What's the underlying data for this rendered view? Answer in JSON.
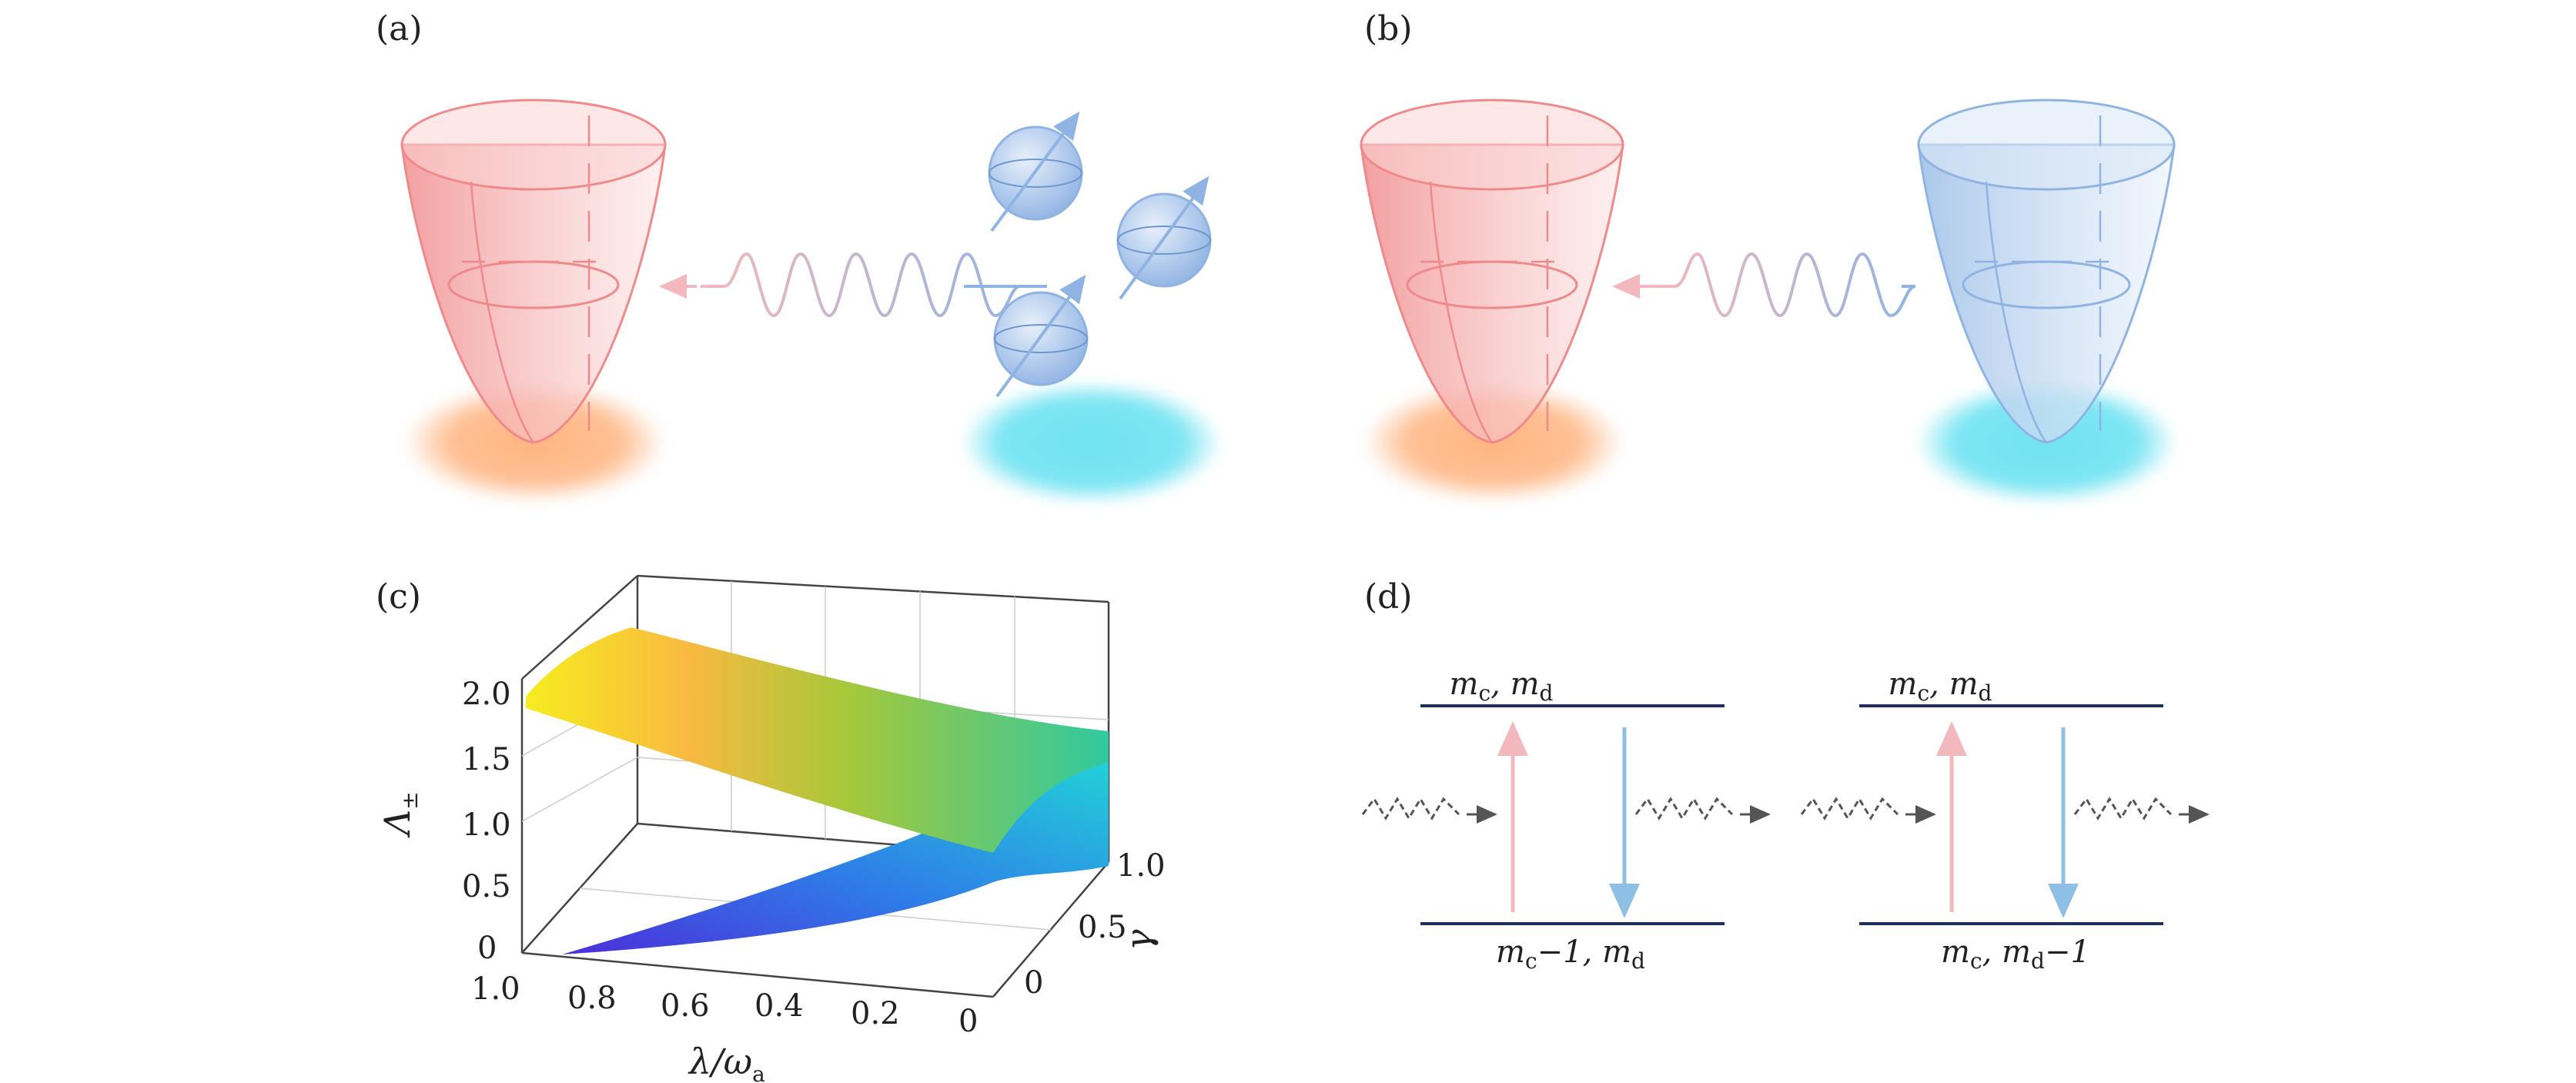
{
  "panels": {
    "a": {
      "label": "(a)"
    },
    "b": {
      "label": "(b)"
    },
    "c": {
      "label": "(c)"
    },
    "d": {
      "label": "(d)"
    }
  },
  "colors": {
    "cavity_red": "#f08a8a",
    "cavity_fill": "#f7b5b5",
    "spin_blue": "#8fb3e3",
    "glow_orange": "#ffb07a",
    "glow_cyan": "#6fe3f2",
    "level_line": "#1f2e5a",
    "arrow_pink": "#f2b8bd",
    "arrow_blue": "#8ec0e6"
  },
  "panel_c": {
    "zlabel_main": "Λ",
    "zlabel_sub": "±",
    "xlabel_num": "λ/ω",
    "xlabel_sub": "a",
    "ylabel": "γ",
    "z_ticks": [
      "2.0",
      "1.5",
      "1.0",
      "0.5",
      "0"
    ],
    "x_ticks": [
      "1.0",
      "0.8",
      "0.6",
      "0.4",
      "0.2",
      "0"
    ],
    "y_ticks": [
      "1.0",
      "0.5",
      "0"
    ]
  },
  "panel_d": {
    "left": {
      "top_level": [
        "m",
        "c",
        ", m",
        "d",
        ""
      ],
      "bottom_level": [
        "m",
        "c",
        "−1, m",
        "d",
        ""
      ]
    },
    "right": {
      "top_level": [
        "m",
        "c",
        ", m",
        "d",
        ""
      ],
      "bottom_level": [
        "m",
        "c",
        ", m",
        "d",
        "−1"
      ]
    }
  }
}
